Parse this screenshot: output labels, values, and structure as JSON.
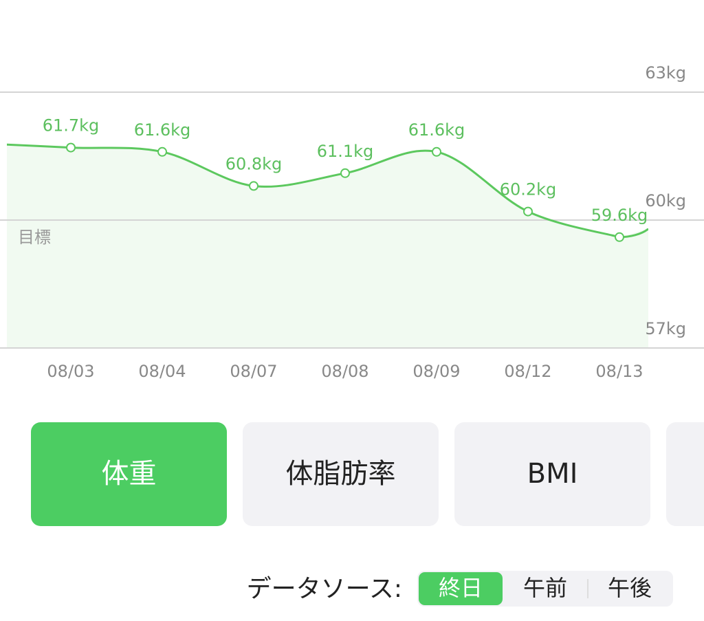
{
  "chart_data": {
    "type": "line",
    "categories": [
      null,
      "08/03",
      "08/04",
      "08/07",
      "08/08",
      "08/09",
      "08/12",
      "08/13"
    ],
    "values": [
      61.8,
      61.7,
      61.6,
      60.8,
      61.1,
      61.6,
      60.2,
      59.6
    ],
    "value_labels": [
      null,
      "61.7kg",
      "61.6kg",
      "60.8kg",
      "61.1kg",
      "61.6kg",
      "60.2kg",
      "59.6kg"
    ],
    "color": "#5cc85e",
    "ylim": [
      57,
      63
    ],
    "yticks": [
      {
        "value": 57,
        "label": "57kg"
      },
      {
        "value": 60,
        "label": "60kg"
      },
      {
        "value": 63,
        "label": "63kg"
      }
    ],
    "grid": true,
    "goal_label": "目標"
  },
  "tabs": [
    {
      "label": "体重",
      "active": true
    },
    {
      "label": "体脂肪率",
      "active": false
    },
    {
      "label": "BMI",
      "active": false
    }
  ],
  "data_source": {
    "label": "データソース:",
    "options": [
      "終日",
      "午前",
      "午後"
    ],
    "selected": 0
  }
}
